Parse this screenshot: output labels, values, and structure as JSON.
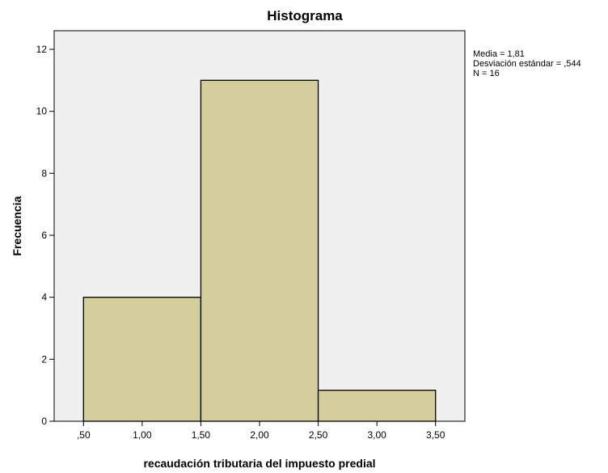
{
  "chart_data": {
    "type": "bar",
    "title": "Histograma",
    "xlabel": "recaudación tributaria del impuesto predial",
    "ylabel": "Frecuencia",
    "bins": [
      {
        "start": 0.5,
        "end": 1.5,
        "value": 4
      },
      {
        "start": 1.5,
        "end": 2.5,
        "value": 11
      },
      {
        "start": 2.5,
        "end": 3.5,
        "value": 1
      }
    ],
    "x_ticks": [
      {
        "value": 0.5,
        "label": ",50"
      },
      {
        "value": 1.0,
        "label": "1,00"
      },
      {
        "value": 1.5,
        "label": "1,50"
      },
      {
        "value": 2.0,
        "label": "2,00"
      },
      {
        "value": 2.5,
        "label": "2,50"
      },
      {
        "value": 3.0,
        "label": "3,00"
      },
      {
        "value": 3.5,
        "label": "3,50"
      }
    ],
    "y_ticks": [
      0,
      2,
      4,
      6,
      8,
      10,
      12
    ],
    "xlim": [
      0.25,
      3.75
    ],
    "ylim": [
      0,
      12.6
    ],
    "grid": false,
    "bar_color": "#d3ce9b",
    "bar_edge_color": "#000000",
    "plot_background": "#f0f0f0",
    "stats": {
      "mean": "Media = 1,81",
      "std": "Desviación estándar = ,544",
      "n": "N = 16"
    }
  }
}
